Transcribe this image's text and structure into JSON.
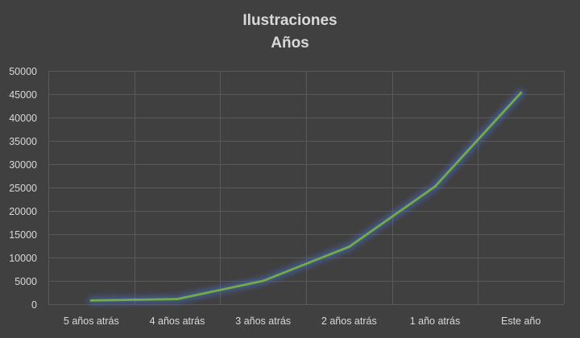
{
  "chart_data": {
    "type": "line",
    "title": "Ilustraciones",
    "subtitle": "Años",
    "categories": [
      "5 años atrás",
      "4 años atrás",
      "3 años atrás",
      "2 años atrás",
      "1 año atrás",
      "Este año"
    ],
    "series": [
      {
        "values": [
          800,
          1100,
          5000,
          12300,
          25200,
          45300
        ]
      }
    ],
    "ylim": [
      0,
      50000
    ],
    "yticks": [
      "0",
      "5000",
      "10000",
      "15000",
      "20000",
      "25000",
      "30000",
      "35000",
      "40000",
      "45000",
      "50000"
    ],
    "grid": true,
    "legend": "none",
    "colors": {
      "background": "#404040",
      "line": "#70ad47",
      "glow": "#4a6fd0",
      "grid": "#595959",
      "text": "#d9d9d9"
    }
  }
}
